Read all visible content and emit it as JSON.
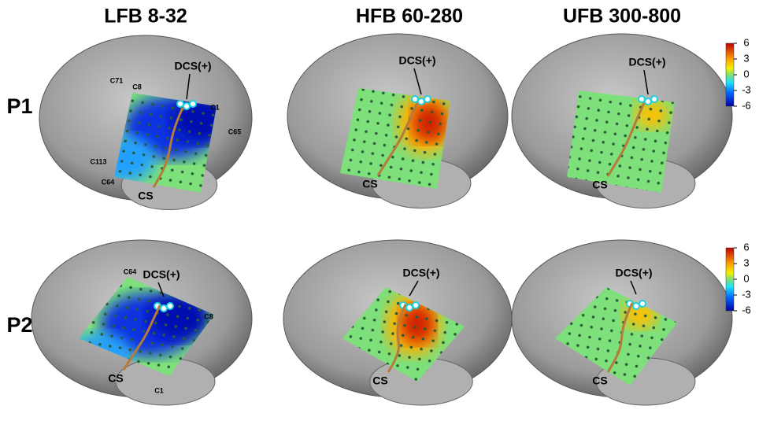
{
  "columns": [
    "LFB 8-32",
    "HFB 60-280",
    "UFB 300-800"
  ],
  "rows": [
    "P1",
    "P2"
  ],
  "annotations": {
    "dcs": "DCS(+)",
    "cs": "CS"
  },
  "electrode_labels": {
    "P1": [
      "C71",
      "C8",
      "C1",
      "C65",
      "C113",
      "C64"
    ],
    "P2": [
      "C64",
      "C8",
      "C1"
    ]
  },
  "colorbar": {
    "range": [
      -6,
      6
    ],
    "ticks": [
      6,
      3,
      0,
      -3,
      -6
    ]
  }
}
